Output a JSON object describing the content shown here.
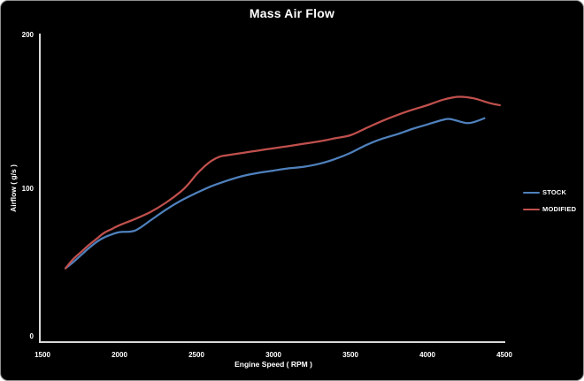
{
  "window": {
    "background": "#000000",
    "border_color": "#8f8f8f"
  },
  "chart_data": {
    "type": "line",
    "title": "Mass Air Flow",
    "xlabel": "Engine Speed ( RPM )",
    "ylabel": "Airflow ( g/s )",
    "xlim": [
      1500,
      4500
    ],
    "ylim": [
      0,
      200
    ],
    "xticks": [
      1500,
      2000,
      2500,
      3000,
      3500,
      4000,
      4500
    ],
    "yticks": [
      0,
      100,
      200
    ],
    "grid": false,
    "legend_position": "right",
    "axis_color": "#d9d9d9",
    "text_color": "#ffffff",
    "series": [
      {
        "name": "STOCK",
        "color": "#4f81bd",
        "points": [
          [
            1650,
            48
          ],
          [
            1700,
            52
          ],
          [
            1750,
            56.5
          ],
          [
            1800,
            61
          ],
          [
            1850,
            65
          ],
          [
            1900,
            68
          ],
          [
            1950,
            70
          ],
          [
            2000,
            71.5
          ],
          [
            2100,
            72.5
          ],
          [
            2200,
            79
          ],
          [
            2300,
            86
          ],
          [
            2400,
            92
          ],
          [
            2500,
            97
          ],
          [
            2600,
            101.5
          ],
          [
            2700,
            105
          ],
          [
            2800,
            108
          ],
          [
            2900,
            110
          ],
          [
            3000,
            111.5
          ],
          [
            3100,
            113
          ],
          [
            3200,
            114
          ],
          [
            3300,
            116
          ],
          [
            3400,
            119
          ],
          [
            3500,
            123
          ],
          [
            3600,
            128
          ],
          [
            3700,
            132
          ],
          [
            3800,
            135
          ],
          [
            3900,
            138.5
          ],
          [
            4000,
            141.5
          ],
          [
            4100,
            144.5
          ],
          [
            4150,
            145
          ],
          [
            4250,
            142.5
          ],
          [
            4300,
            143
          ],
          [
            4370,
            145.5
          ]
        ]
      },
      {
        "name": "MODIFIED",
        "color": "#c0504d",
        "points": [
          [
            1650,
            48
          ],
          [
            1700,
            54
          ],
          [
            1750,
            58.5
          ],
          [
            1800,
            63
          ],
          [
            1850,
            67
          ],
          [
            1900,
            71
          ],
          [
            1950,
            73.5
          ],
          [
            2000,
            76
          ],
          [
            2100,
            80
          ],
          [
            2200,
            84.5
          ],
          [
            2300,
            90.5
          ],
          [
            2400,
            98
          ],
          [
            2450,
            103
          ],
          [
            2500,
            109
          ],
          [
            2550,
            114
          ],
          [
            2600,
            118
          ],
          [
            2650,
            120.5
          ],
          [
            2700,
            121.5
          ],
          [
            2800,
            123
          ],
          [
            2900,
            124.5
          ],
          [
            3000,
            126
          ],
          [
            3100,
            127.5
          ],
          [
            3200,
            129
          ],
          [
            3300,
            130.5
          ],
          [
            3400,
            132.5
          ],
          [
            3500,
            134.5
          ],
          [
            3600,
            139
          ],
          [
            3700,
            143.5
          ],
          [
            3800,
            147.5
          ],
          [
            3900,
            151
          ],
          [
            4000,
            154
          ],
          [
            4100,
            157.5
          ],
          [
            4200,
            159.5
          ],
          [
            4300,
            158.5
          ],
          [
            4400,
            155.5
          ],
          [
            4470,
            154
          ]
        ]
      }
    ]
  }
}
